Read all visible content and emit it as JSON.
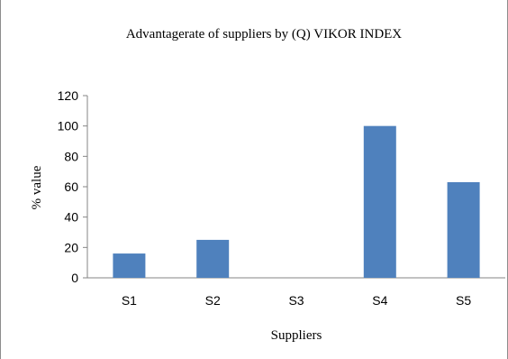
{
  "chart_data": {
    "type": "bar",
    "title": "Advantagerate of suppliers by  (Q) VIKOR INDEX",
    "xlabel": "Suppliers",
    "ylabel": "% value",
    "categories": [
      "S1",
      "S2",
      "S3",
      "S4",
      "S5"
    ],
    "values": [
      16,
      25,
      0,
      100,
      63
    ],
    "ylim": [
      0,
      120
    ],
    "yticks": [
      0,
      20,
      40,
      60,
      80,
      100,
      120
    ],
    "grid": false,
    "legend": "none",
    "bar_color": "#4f81bd"
  }
}
